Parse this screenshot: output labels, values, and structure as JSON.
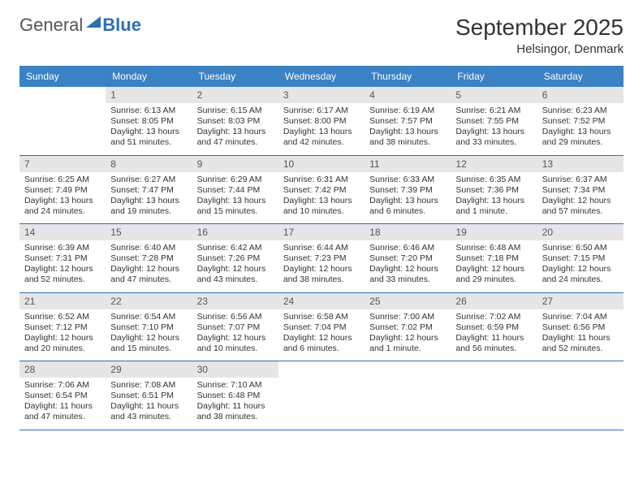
{
  "logo": {
    "text1": "General",
    "text2": "Blue"
  },
  "title": "September 2025",
  "location": "Helsingor, Denmark",
  "colors": {
    "header_bg": "#3a82c4",
    "daynum_bg": "#e6e6e6",
    "rule": "#2d6fb6",
    "text": "#333333"
  },
  "weekdays": [
    "Sunday",
    "Monday",
    "Tuesday",
    "Wednesday",
    "Thursday",
    "Friday",
    "Saturday"
  ],
  "weeks": [
    [
      null,
      {
        "n": "1",
        "sunrise": "6:13 AM",
        "sunset": "8:05 PM",
        "daylight": "13 hours and 51 minutes."
      },
      {
        "n": "2",
        "sunrise": "6:15 AM",
        "sunset": "8:03 PM",
        "daylight": "13 hours and 47 minutes."
      },
      {
        "n": "3",
        "sunrise": "6:17 AM",
        "sunset": "8:00 PM",
        "daylight": "13 hours and 42 minutes."
      },
      {
        "n": "4",
        "sunrise": "6:19 AM",
        "sunset": "7:57 PM",
        "daylight": "13 hours and 38 minutes."
      },
      {
        "n": "5",
        "sunrise": "6:21 AM",
        "sunset": "7:55 PM",
        "daylight": "13 hours and 33 minutes."
      },
      {
        "n": "6",
        "sunrise": "6:23 AM",
        "sunset": "7:52 PM",
        "daylight": "13 hours and 29 minutes."
      }
    ],
    [
      {
        "n": "7",
        "sunrise": "6:25 AM",
        "sunset": "7:49 PM",
        "daylight": "13 hours and 24 minutes."
      },
      {
        "n": "8",
        "sunrise": "6:27 AM",
        "sunset": "7:47 PM",
        "daylight": "13 hours and 19 minutes."
      },
      {
        "n": "9",
        "sunrise": "6:29 AM",
        "sunset": "7:44 PM",
        "daylight": "13 hours and 15 minutes."
      },
      {
        "n": "10",
        "sunrise": "6:31 AM",
        "sunset": "7:42 PM",
        "daylight": "13 hours and 10 minutes."
      },
      {
        "n": "11",
        "sunrise": "6:33 AM",
        "sunset": "7:39 PM",
        "daylight": "13 hours and 6 minutes."
      },
      {
        "n": "12",
        "sunrise": "6:35 AM",
        "sunset": "7:36 PM",
        "daylight": "13 hours and 1 minute."
      },
      {
        "n": "13",
        "sunrise": "6:37 AM",
        "sunset": "7:34 PM",
        "daylight": "12 hours and 57 minutes."
      }
    ],
    [
      {
        "n": "14",
        "sunrise": "6:39 AM",
        "sunset": "7:31 PM",
        "daylight": "12 hours and 52 minutes."
      },
      {
        "n": "15",
        "sunrise": "6:40 AM",
        "sunset": "7:28 PM",
        "daylight": "12 hours and 47 minutes."
      },
      {
        "n": "16",
        "sunrise": "6:42 AM",
        "sunset": "7:26 PM",
        "daylight": "12 hours and 43 minutes."
      },
      {
        "n": "17",
        "sunrise": "6:44 AM",
        "sunset": "7:23 PM",
        "daylight": "12 hours and 38 minutes."
      },
      {
        "n": "18",
        "sunrise": "6:46 AM",
        "sunset": "7:20 PM",
        "daylight": "12 hours and 33 minutes."
      },
      {
        "n": "19",
        "sunrise": "6:48 AM",
        "sunset": "7:18 PM",
        "daylight": "12 hours and 29 minutes."
      },
      {
        "n": "20",
        "sunrise": "6:50 AM",
        "sunset": "7:15 PM",
        "daylight": "12 hours and 24 minutes."
      }
    ],
    [
      {
        "n": "21",
        "sunrise": "6:52 AM",
        "sunset": "7:12 PM",
        "daylight": "12 hours and 20 minutes."
      },
      {
        "n": "22",
        "sunrise": "6:54 AM",
        "sunset": "7:10 PM",
        "daylight": "12 hours and 15 minutes."
      },
      {
        "n": "23",
        "sunrise": "6:56 AM",
        "sunset": "7:07 PM",
        "daylight": "12 hours and 10 minutes."
      },
      {
        "n": "24",
        "sunrise": "6:58 AM",
        "sunset": "7:04 PM",
        "daylight": "12 hours and 6 minutes."
      },
      {
        "n": "25",
        "sunrise": "7:00 AM",
        "sunset": "7:02 PM",
        "daylight": "12 hours and 1 minute."
      },
      {
        "n": "26",
        "sunrise": "7:02 AM",
        "sunset": "6:59 PM",
        "daylight": "11 hours and 56 minutes."
      },
      {
        "n": "27",
        "sunrise": "7:04 AM",
        "sunset": "6:56 PM",
        "daylight": "11 hours and 52 minutes."
      }
    ],
    [
      {
        "n": "28",
        "sunrise": "7:06 AM",
        "sunset": "6:54 PM",
        "daylight": "11 hours and 47 minutes."
      },
      {
        "n": "29",
        "sunrise": "7:08 AM",
        "sunset": "6:51 PM",
        "daylight": "11 hours and 43 minutes."
      },
      {
        "n": "30",
        "sunrise": "7:10 AM",
        "sunset": "6:48 PM",
        "daylight": "11 hours and 38 minutes."
      },
      null,
      null,
      null,
      null
    ]
  ],
  "labels": {
    "sunrise": "Sunrise: ",
    "sunset": "Sunset: ",
    "daylight": "Daylight: "
  }
}
